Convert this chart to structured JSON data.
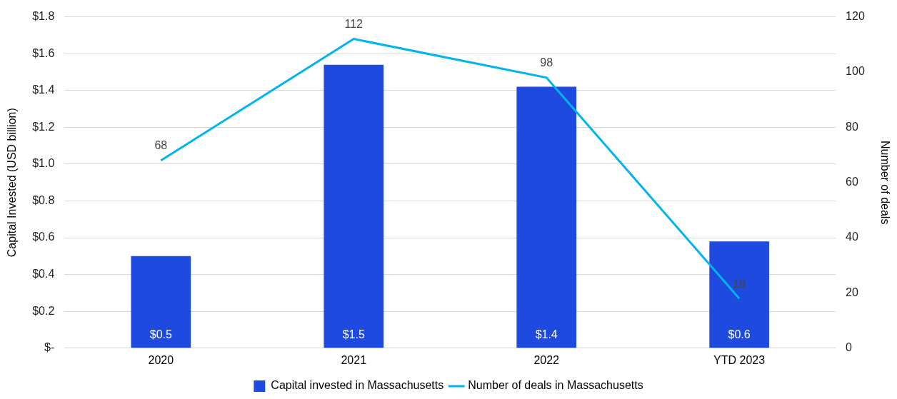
{
  "chart_data": {
    "type": "bar",
    "categories": [
      "2020",
      "2021",
      "2022",
      "YTD 2023"
    ],
    "ylabel": "Capital Invested (USD billion)",
    "y2label": "Number of deals",
    "series": [
      {
        "name": "Capital invested in Massachusetts",
        "color": "#1f4ae0",
        "values": [
          0.5,
          1.54,
          1.42,
          0.58
        ],
        "value_labels": [
          "$0.5",
          "$1.5",
          "$1.4",
          "$0.6"
        ]
      },
      {
        "name": "Number of deals in Massachusetts",
        "type": "line",
        "axis": "y2",
        "color": "#00b4f0",
        "values": [
          68,
          112,
          98,
          18
        ],
        "value_labels": [
          "68",
          "112",
          "98",
          "18"
        ]
      }
    ],
    "ylim": [
      0,
      1.8
    ],
    "yticks": [
      {
        "value": 0,
        "label": "$-"
      },
      {
        "value": 0.2,
        "label": "$0.2"
      },
      {
        "value": 0.4,
        "label": "$0.4"
      },
      {
        "value": 0.6,
        "label": "$0.6"
      },
      {
        "value": 0.8,
        "label": "$0.8"
      },
      {
        "value": 1.0,
        "label": "$1.0"
      },
      {
        "value": 1.2,
        "label": "$1.2"
      },
      {
        "value": 1.4,
        "label": "$1.4"
      },
      {
        "value": 1.6,
        "label": "$1.6"
      },
      {
        "value": 1.8,
        "label": "$1.8"
      }
    ],
    "y2lim": [
      0,
      120
    ],
    "y2ticks": [
      0,
      20,
      40,
      60,
      80,
      100,
      120
    ],
    "grid": "y",
    "legend": "bottom",
    "marker": "none"
  }
}
